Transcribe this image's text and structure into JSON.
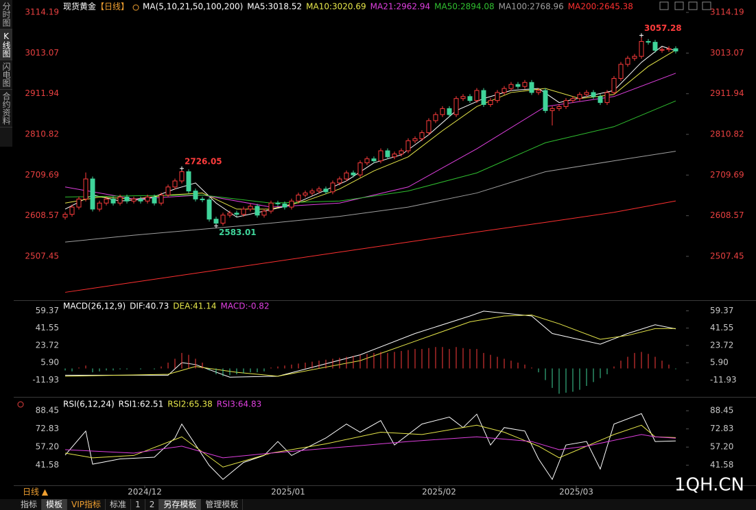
{
  "app": {
    "side_tabs": [
      "分时图",
      "K线图",
      "闪电图",
      "合约资料"
    ],
    "bottom_tabs": [
      "指标",
      "模板",
      "VIP指标",
      "标准",
      "1",
      "2",
      "另存模板",
      "管理模板"
    ],
    "period": "日线 ▲",
    "watermark": "1QH.CN"
  },
  "chart_data": [
    {
      "type": "candlestick",
      "title": "现货黄金",
      "period_tag": "【日线】",
      "indicator": "MA(5,10,21,50,100,200)",
      "axis_color": "#e84040",
      "up_color": "#ff3c3c",
      "down_color": "#3fd49a",
      "xlim": [
        -0.5,
        90.5
      ],
      "ylim": [
        2400,
        3131.4
      ],
      "yticks": [
        3114.19,
        3013.07,
        2911.94,
        2810.82,
        2709.69,
        2608.57,
        2507.45
      ],
      "open": [
        2605,
        2612,
        2630,
        2650,
        2700,
        2625,
        2640,
        2650,
        2640,
        2655,
        2645,
        2650,
        2645,
        2655,
        2640,
        2660,
        2680,
        2695,
        2718,
        2670,
        2650,
        2648,
        2600,
        2590,
        2610,
        2615,
        2612,
        2625,
        2632,
        2610,
        2620,
        2640,
        2638,
        2630,
        2645,
        2660,
        2665,
        2670,
        2675,
        2668,
        2690,
        2700,
        2715,
        2710,
        2740,
        2750,
        2745,
        2770,
        2755,
        2762,
        2770,
        2795,
        2800,
        2815,
        2845,
        2860,
        2875,
        2860,
        2900,
        2905,
        2895,
        2920,
        2885,
        2895,
        2915,
        2925,
        2935,
        2930,
        2940,
        2915,
        2920,
        2870,
        2875,
        2880,
        2895,
        2900,
        2910,
        2915,
        2905,
        2890,
        2915,
        2950,
        2985,
        3000,
        3005,
        3042,
        3040,
        3020,
        3022,
        3024
      ],
      "high": [
        2618,
        2636,
        2656,
        2716,
        2706,
        2646,
        2656,
        2656,
        2661,
        2661,
        2656,
        2656,
        2661,
        2661,
        2666,
        2686,
        2701,
        2726.05,
        2724,
        2676,
        2656,
        2654,
        2606,
        2616,
        2621,
        2621,
        2631,
        2638,
        2638,
        2626,
        2646,
        2646,
        2644,
        2651,
        2666,
        2671,
        2676,
        2681,
        2681,
        2696,
        2706,
        2721,
        2721,
        2746,
        2756,
        2756,
        2776,
        2776,
        2768,
        2776,
        2801,
        2806,
        2821,
        2851,
        2866,
        2881,
        2881,
        2906,
        2911,
        2911,
        2926,
        2926,
        2901,
        2921,
        2931,
        2941,
        2941,
        2946,
        2946,
        2926,
        2926,
        2881,
        2886,
        2901,
        2906,
        2916,
        2921,
        2921,
        2911,
        2921,
        2956,
        2991,
        3006,
        3011,
        3057.28,
        3048,
        3046,
        3028,
        3030,
        3030
      ],
      "low": [
        2599,
        2606,
        2624,
        2644,
        2619,
        2619,
        2634,
        2634,
        2634,
        2639,
        2639,
        2639,
        2639,
        2634,
        2634,
        2654,
        2674,
        2689,
        2664,
        2644,
        2642,
        2594,
        2583.01,
        2584,
        2604,
        2606,
        2606,
        2619,
        2604,
        2604,
        2614,
        2632,
        2624,
        2624,
        2639,
        2654,
        2659,
        2664,
        2662,
        2662,
        2684,
        2694,
        2704,
        2704,
        2734,
        2739,
        2739,
        2749,
        2749,
        2756,
        2764,
        2789,
        2794,
        2809,
        2839,
        2854,
        2854,
        2854,
        2894,
        2889,
        2889,
        2879,
        2879,
        2889,
        2909,
        2919,
        2924,
        2924,
        2909,
        2909,
        2864,
        2833,
        2869,
        2874,
        2889,
        2894,
        2904,
        2899,
        2884,
        2884,
        2909,
        2944,
        2979,
        2994,
        2999,
        3034,
        3014,
        3014,
        3016,
        3012
      ],
      "close": [
        2612,
        2630,
        2650,
        2700,
        2625,
        2640,
        2650,
        2640,
        2655,
        2645,
        2650,
        2645,
        2655,
        2640,
        2660,
        2680,
        2695,
        2718,
        2670,
        2650,
        2648,
        2600,
        2590,
        2610,
        2615,
        2612,
        2625,
        2632,
        2610,
        2620,
        2640,
        2638,
        2630,
        2645,
        2660,
        2665,
        2670,
        2675,
        2668,
        2690,
        2700,
        2715,
        2710,
        2740,
        2750,
        2745,
        2770,
        2755,
        2762,
        2770,
        2795,
        2800,
        2815,
        2845,
        2860,
        2875,
        2860,
        2900,
        2905,
        2895,
        2920,
        2885,
        2895,
        2915,
        2925,
        2935,
        2930,
        2940,
        2915,
        2920,
        2870,
        2875,
        2880,
        2895,
        2900,
        2910,
        2915,
        2905,
        2890,
        2915,
        2950,
        2985,
        3000,
        3005,
        3042,
        3040,
        3020,
        3022,
        3024,
        3018
      ],
      "series": [
        {
          "name": "MA5:3018.52",
          "color": "#ffffff",
          "x": [
            0,
            4,
            8,
            12,
            16,
            19,
            22,
            25,
            29,
            33,
            37,
            41,
            45,
            49,
            53,
            57,
            61,
            65,
            69,
            72,
            76,
            80,
            84,
            87,
            89
          ],
          "values": [
            2625,
            2660,
            2645,
            2650,
            2675,
            2690,
            2640,
            2605,
            2620,
            2635,
            2665,
            2695,
            2740,
            2760,
            2810,
            2870,
            2900,
            2920,
            2925,
            2890,
            2905,
            2920,
            2990,
            3030,
            3018.52
          ]
        },
        {
          "name": "MA10:3020.69",
          "color": "#e8e84a",
          "x": [
            0,
            5,
            10,
            15,
            20,
            25,
            30,
            35,
            40,
            45,
            50,
            55,
            60,
            65,
            70,
            75,
            80,
            85,
            89
          ],
          "values": [
            2640,
            2655,
            2650,
            2660,
            2665,
            2625,
            2625,
            2645,
            2675,
            2720,
            2755,
            2820,
            2880,
            2915,
            2925,
            2900,
            2910,
            2980,
            3020.69
          ]
        },
        {
          "name": "MA21:2962.94",
          "color": "#e040e0",
          "x": [
            0,
            10,
            20,
            30,
            40,
            50,
            60,
            70,
            80,
            89
          ],
          "values": [
            2680,
            2650,
            2660,
            2630,
            2640,
            2680,
            2775,
            2880,
            2905,
            2962.94
          ]
        },
        {
          "name": "MA50:2894.08",
          "color": "#30c030",
          "x": [
            0,
            10,
            20,
            30,
            40,
            50,
            60,
            70,
            80,
            89
          ],
          "values": [
            2655,
            2658,
            2660,
            2640,
            2645,
            2670,
            2715,
            2790,
            2830,
            2894.08
          ]
        },
        {
          "name": "MA100:2768.96",
          "color": "#a0a0a0",
          "x": [
            0,
            10,
            20,
            30,
            40,
            50,
            60,
            70,
            80,
            89
          ],
          "values": [
            2543,
            2560,
            2575,
            2590,
            2607,
            2630,
            2665,
            2718,
            2745,
            2768.96
          ]
        },
        {
          "name": "MA200:2645.38",
          "color": "#ff3030",
          "x": [
            0,
            10,
            20,
            30,
            40,
            50,
            60,
            70,
            80,
            89
          ],
          "values": [
            2418,
            2443,
            2468,
            2493,
            2518,
            2543,
            2568,
            2592,
            2617,
            2645.38
          ]
        }
      ]
    },
    {
      "type": "macd",
      "title": "MACD(26,12,9)",
      "axis_color": "#c8c8c8",
      "xlim": [
        -0.5,
        90.5
      ],
      "ylim": [
        -28.6,
        68.1
      ],
      "yticks": [
        59.37,
        41.55,
        23.72,
        {
          "value": 5.9,
          "label": "5.90"
        },
        -11.93
      ],
      "series": [
        {
          "name": "DIF:40.73",
          "color": "#ffffff",
          "x": [
            0,
            15,
            17,
            19,
            24,
            31,
            43,
            51,
            59,
            61,
            68,
            71,
            78,
            82,
            86,
            89
          ],
          "values": [
            -7,
            -7,
            6,
            4,
            -9,
            -8,
            14,
            36,
            54,
            59,
            54,
            36,
            25,
            36,
            45,
            40.73
          ]
        },
        {
          "name": "DEA:41.14",
          "color": "#e8e84a",
          "x": [
            0,
            15,
            19,
            25,
            31,
            43,
            51,
            59,
            64,
            68,
            72,
            78,
            82,
            86,
            89
          ],
          "values": [
            -8,
            -6,
            2,
            -4,
            -8,
            8,
            28,
            48,
            54,
            55,
            46,
            30,
            34,
            41,
            41.14
          ]
        },
        {
          "name": "MACD:-0.82",
          "color": "#e040e0",
          "up_color": "#ff3c3c",
          "down_color": "#3fd49a",
          "bars": true,
          "values": [
            -2,
            -3,
            1,
            3,
            -4,
            -3,
            -2,
            -2,
            -1,
            -1,
            0,
            -1,
            0,
            -1,
            2,
            6,
            10,
            16,
            14,
            10,
            6,
            -2,
            -6,
            -8,
            -7,
            -6,
            -5,
            -4,
            -4,
            -3,
            1,
            2,
            3,
            4,
            5,
            6,
            7,
            8,
            9,
            10,
            11,
            12,
            13,
            14,
            15,
            16,
            17,
            16,
            17,
            18,
            19,
            20,
            20,
            21,
            22,
            22,
            20,
            22,
            21,
            20,
            20,
            16,
            14,
            12,
            10,
            8,
            6,
            4,
            1,
            -4,
            -12,
            -20,
            -26,
            -25,
            -24,
            -22,
            -18,
            -14,
            -10,
            -6,
            2,
            8,
            12,
            16,
            17,
            15,
            12,
            8,
            4,
            -0.82
          ]
        }
      ]
    },
    {
      "type": "line",
      "title": "RSI(6,12,24)",
      "axis_color": "#c8c8c8",
      "xlim": [
        -0.5,
        90.5
      ],
      "ylim": [
        24.9,
        98
      ],
      "yticks": [
        88.45,
        72.83,
        {
          "value": 57.2,
          "label": "57.20"
        },
        41.58
      ],
      "xticks": [
        {
          "value": 11.6,
          "label": "2024/12"
        },
        {
          "value": 32.5,
          "label": "2025/01"
        },
        {
          "value": 54.5,
          "label": "2025/02"
        },
        {
          "value": 74.5,
          "label": "2025/03"
        }
      ],
      "series": [
        {
          "name": "RSI1:62.51",
          "color": "#ffffff",
          "x": [
            0,
            3,
            4,
            8,
            13,
            16,
            17,
            21,
            23,
            26,
            29,
            31,
            33,
            38,
            41,
            43,
            46,
            48,
            52,
            56,
            58,
            60,
            62,
            64,
            67,
            69,
            71,
            73,
            76,
            78,
            80,
            84,
            86,
            89
          ],
          "values": [
            50.3,
            71,
            42.5,
            47,
            48.5,
            65,
            77,
            41.4,
            29.4,
            44,
            50,
            62,
            50,
            65,
            77,
            70,
            80,
            59,
            77,
            83,
            74,
            85.5,
            59,
            74,
            71,
            47,
            29.4,
            59,
            62,
            38.3,
            77,
            86,
            62,
            62.51
          ]
        },
        {
          "name": "RSI2:65.38",
          "color": "#e8e84a",
          "x": [
            0,
            4,
            10,
            17,
            23,
            30,
            38,
            46,
            52,
            60,
            64,
            69,
            72,
            76,
            80,
            84,
            86,
            89
          ],
          "values": [
            52,
            48,
            50,
            66,
            40,
            52,
            60,
            70,
            68,
            76,
            70,
            58,
            48,
            58,
            68,
            76,
            66,
            65.38
          ]
        },
        {
          "name": "RSI3:64.83",
          "color": "#e040e0",
          "x": [
            0,
            10,
            17,
            23,
            30,
            40,
            50,
            60,
            68,
            72,
            76,
            84,
            86,
            89
          ],
          "values": [
            55,
            52,
            58,
            48,
            52,
            57,
            62,
            66,
            62,
            55,
            58,
            68,
            66,
            64.83
          ]
        }
      ]
    }
  ]
}
